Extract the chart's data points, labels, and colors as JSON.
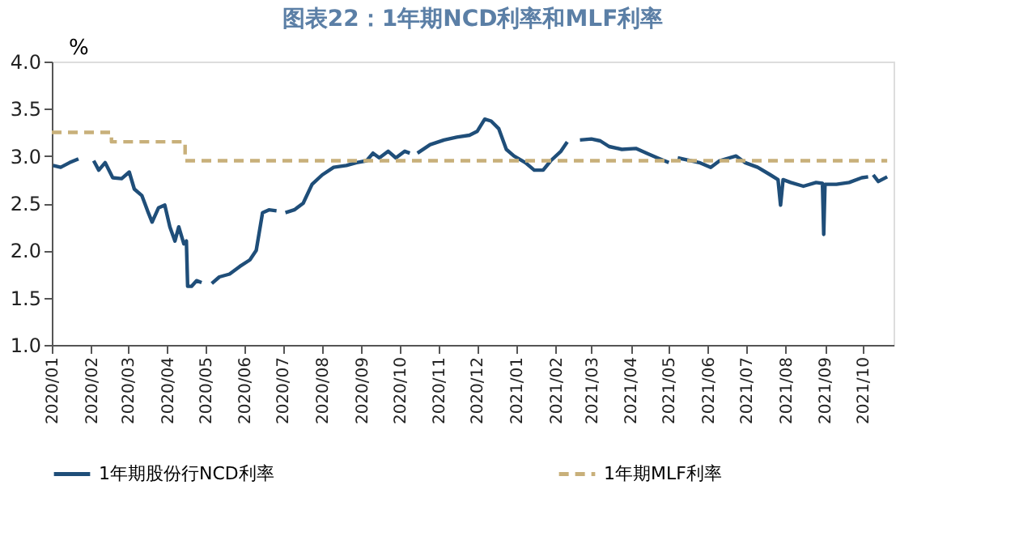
{
  "chart_data": {
    "type": "line",
    "title": "图表22：1年期NCD利率和MLF利率",
    "ylabel": "%",
    "series": [
      {
        "name": "1年期股份行NCD利率",
        "color": "#1f4e79",
        "line_style": "solid",
        "x": [
          "2020-01-02",
          "2020-01-08",
          "2020-01-15",
          "2020-01-22",
          "2020-01-28",
          "2020-02-03",
          "2020-02-07",
          "2020-02-12",
          "2020-02-18",
          "2020-02-25",
          "2020-03-02",
          "2020-03-06",
          "2020-03-12",
          "2020-03-17",
          "2020-03-20",
          "2020-03-25",
          "2020-03-30",
          "2020-04-03",
          "2020-04-07",
          "2020-04-10",
          "2020-04-14",
          "2020-04-16",
          "2020-04-17",
          "2020-04-20",
          "2020-04-24",
          "2020-04-28",
          "2020-05-01",
          "2020-05-06",
          "2020-05-12",
          "2020-05-20",
          "2020-05-28",
          "2020-06-05",
          "2020-06-10",
          "2020-06-15",
          "2020-06-20",
          "2020-06-26",
          "2020-07-01",
          "2020-07-03",
          "2020-07-10",
          "2020-07-17",
          "2020-07-24",
          "2020-08-01",
          "2020-08-10",
          "2020-08-20",
          "2020-08-28",
          "2020-09-05",
          "2020-09-10",
          "2020-09-15",
          "2020-09-22",
          "2020-09-28",
          "2020-10-05",
          "2020-10-09",
          "2020-10-12",
          "2020-10-15",
          "2020-10-25",
          "2020-11-05",
          "2020-11-15",
          "2020-11-25",
          "2020-12-01",
          "2020-12-07",
          "2020-12-12",
          "2020-12-18",
          "2020-12-24",
          "2020-12-30",
          "2021-01-08",
          "2021-01-15",
          "2021-01-22",
          "2021-01-28",
          "2021-02-05",
          "2021-02-10",
          "2021-02-15",
          "2021-02-20",
          "2021-03-01",
          "2021-03-08",
          "2021-03-15",
          "2021-03-25",
          "2021-04-05",
          "2021-04-15",
          "2021-04-22",
          "2021-05-01",
          "2021-05-05",
          "2021-05-08",
          "2021-05-15",
          "2021-05-25",
          "2021-06-03",
          "2021-06-10",
          "2021-06-23",
          "2021-06-30",
          "2021-07-10",
          "2021-07-20",
          "2021-07-26",
          "2021-07-28",
          "2021-07-30",
          "2021-08-05",
          "2021-08-15",
          "2021-08-25",
          "2021-08-30",
          "2021-08-31",
          "2021-09-01",
          "2021-09-10",
          "2021-09-20",
          "2021-09-30",
          "2021-10-05",
          "2021-10-06",
          "2021-10-09",
          "2021-10-13",
          "2021-10-20"
        ],
        "values": [
          2.9,
          2.88,
          2.93,
          2.97,
          null,
          2.95,
          2.85,
          2.93,
          2.77,
          2.76,
          2.83,
          2.65,
          2.58,
          2.4,
          2.3,
          2.45,
          2.48,
          2.25,
          2.1,
          2.25,
          2.07,
          2.1,
          1.62,
          1.62,
          1.68,
          1.66,
          null,
          1.65,
          1.72,
          1.75,
          1.83,
          1.9,
          2.0,
          2.4,
          2.43,
          2.42,
          null,
          2.4,
          2.43,
          2.5,
          2.7,
          2.8,
          2.88,
          2.9,
          2.93,
          2.95,
          3.03,
          2.98,
          3.05,
          2.98,
          3.05,
          3.03,
          null,
          3.03,
          3.12,
          3.17,
          3.2,
          3.22,
          3.26,
          3.39,
          3.37,
          3.29,
          3.07,
          3.0,
          2.93,
          2.85,
          2.85,
          2.95,
          3.05,
          3.15,
          null,
          3.17,
          3.18,
          3.16,
          3.1,
          3.07,
          3.08,
          3.02,
          2.98,
          2.93,
          null,
          2.98,
          2.96,
          2.93,
          2.88,
          2.95,
          3.0,
          2.93,
          2.88,
          2.8,
          2.75,
          2.48,
          2.75,
          2.72,
          2.68,
          2.72,
          2.71,
          2.17,
          2.7,
          2.7,
          2.72,
          2.77,
          2.78,
          null,
          2.8,
          2.73,
          2.78
        ]
      },
      {
        "name": "1年期MLF利率",
        "type": "step",
        "color": "#c8b07a",
        "line_style": "dashed",
        "x": [
          "2020-01-01",
          "2020-02-17",
          "2020-04-15",
          "2021-10-20"
        ],
        "values": [
          3.25,
          3.15,
          2.95,
          2.95
        ]
      }
    ],
    "xlim": [
      "2020-01-01",
      "2021-10-25"
    ],
    "xticks": [
      {
        "value": "2020-01-01",
        "label": "2020/01"
      },
      {
        "value": "2020-02-01",
        "label": "2020/02"
      },
      {
        "value": "2020-03-01",
        "label": "2020/03"
      },
      {
        "value": "2020-04-01",
        "label": "2020/04"
      },
      {
        "value": "2020-05-01",
        "label": "2020/05"
      },
      {
        "value": "2020-06-01",
        "label": "2020/06"
      },
      {
        "value": "2020-07-01",
        "label": "2020/07"
      },
      {
        "value": "2020-08-01",
        "label": "2020/08"
      },
      {
        "value": "2020-09-01",
        "label": "2020/09"
      },
      {
        "value": "2020-10-01",
        "label": "2020/10"
      },
      {
        "value": "2020-11-01",
        "label": "2020/11"
      },
      {
        "value": "2020-12-01",
        "label": "2020/12"
      },
      {
        "value": "2021-01-01",
        "label": "2021/01"
      },
      {
        "value": "2021-02-01",
        "label": "2021/02"
      },
      {
        "value": "2021-03-01",
        "label": "2021/03"
      },
      {
        "value": "2021-04-01",
        "label": "2021/04"
      },
      {
        "value": "2021-05-01",
        "label": "2021/05"
      },
      {
        "value": "2021-06-01",
        "label": "2021/06"
      },
      {
        "value": "2021-07-01",
        "label": "2021/07"
      },
      {
        "value": "2021-08-01",
        "label": "2021/08"
      },
      {
        "value": "2021-09-01",
        "label": "2021/09"
      },
      {
        "value": "2021-10-01",
        "label": "2021/10"
      }
    ],
    "ylim": [
      1.0,
      4.0
    ],
    "yticks": [
      {
        "value": 1.0,
        "label": "1.0"
      },
      {
        "value": 1.5,
        "label": "1.5"
      },
      {
        "value": 2.0,
        "label": "2.0"
      },
      {
        "value": 2.5,
        "label": "2.5"
      },
      {
        "value": 3.0,
        "label": "3.0"
      },
      {
        "value": 3.5,
        "label": "3.5"
      },
      {
        "value": 4.0,
        "label": "4.0"
      }
    ],
    "grid": false,
    "legend": "bottom"
  }
}
